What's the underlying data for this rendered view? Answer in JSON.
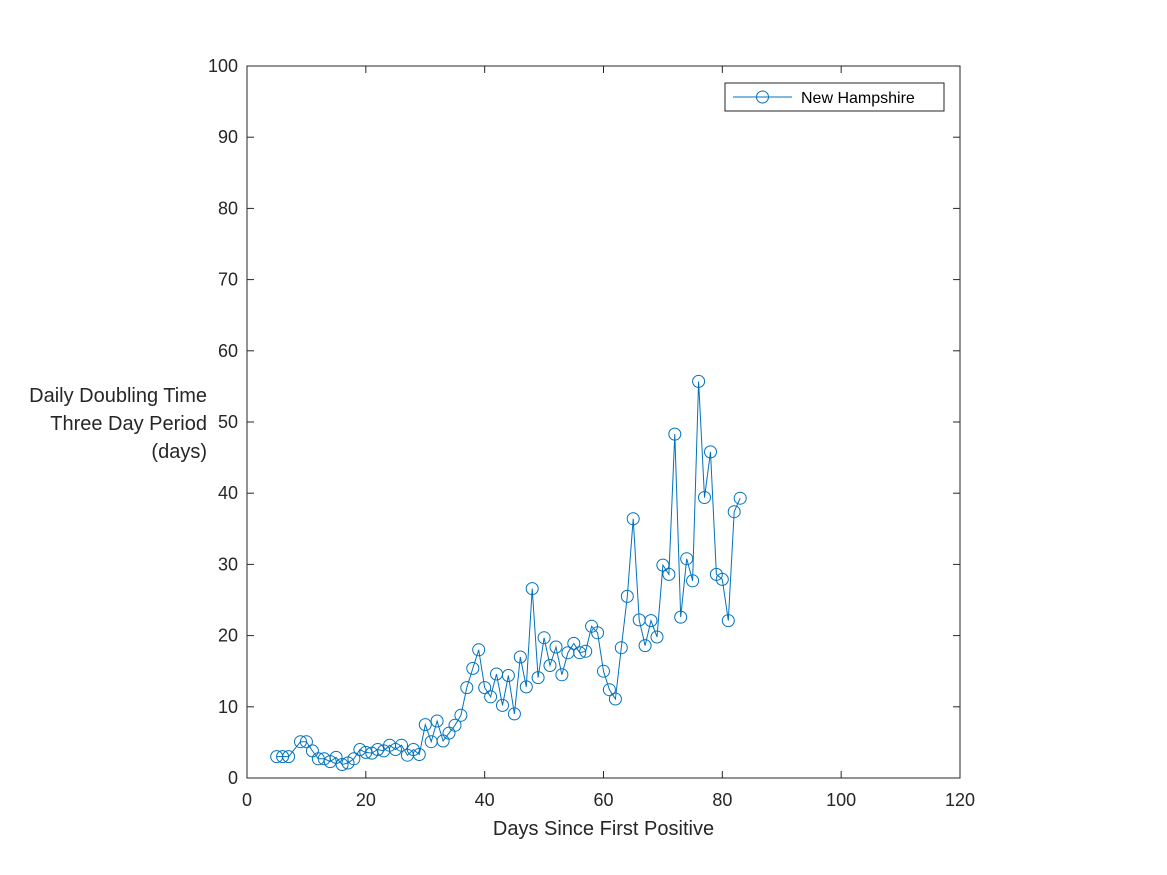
{
  "chart_data": {
    "type": "line",
    "xlabel": "Days Since First Positive",
    "ylabel_lines": [
      "Daily Doubling Time",
      "Three Day Period",
      "(days)"
    ],
    "xlim": [
      0,
      120
    ],
    "ylim": [
      0,
      100
    ],
    "xticks": [
      0,
      20,
      40,
      60,
      80,
      100,
      120
    ],
    "yticks": [
      0,
      10,
      20,
      30,
      40,
      50,
      60,
      70,
      80,
      90,
      100
    ],
    "grid": false,
    "legend_position": "top-right",
    "colors": {
      "series": "#0072BD",
      "axis": "#262626"
    },
    "series": [
      {
        "name": "New Hampshire",
        "marker": "circle",
        "x": [
          5,
          6,
          7,
          9,
          10,
          11,
          12,
          13,
          14,
          15,
          16,
          17,
          18,
          19,
          20,
          21,
          22,
          23,
          24,
          25,
          26,
          27,
          28,
          29,
          30,
          31,
          32,
          33,
          34,
          35,
          36,
          37,
          38,
          39,
          40,
          41,
          42,
          43,
          44,
          45,
          46,
          47,
          48,
          49,
          50,
          51,
          52,
          53,
          54,
          55,
          56,
          57,
          58,
          59,
          60,
          61,
          62,
          63,
          64,
          65,
          66,
          67,
          68,
          69,
          70,
          71,
          72,
          73,
          74,
          75,
          76,
          77,
          78,
          79,
          80,
          81,
          82,
          83
        ],
        "y": [
          3.0,
          3.0,
          3.0,
          5.1,
          5.1,
          3.8,
          2.7,
          2.7,
          2.3,
          2.9,
          1.9,
          2.1,
          2.7,
          4.0,
          3.6,
          3.5,
          4.0,
          3.8,
          4.6,
          4.0,
          4.6,
          3.2,
          4.0,
          3.3,
          7.5,
          5.1,
          8.0,
          5.2,
          6.3,
          7.4,
          8.8,
          12.7,
          15.4,
          18.0,
          12.7,
          11.4,
          14.6,
          10.2,
          14.4,
          9.0,
          17.0,
          12.8,
          26.6,
          14.1,
          19.7,
          15.8,
          18.4,
          14.5,
          17.6,
          18.9,
          17.6,
          17.8,
          21.3,
          20.4,
          15.0,
          12.4,
          11.1,
          18.3,
          25.5,
          36.4,
          22.2,
          18.6,
          22.1,
          19.8,
          29.9,
          28.6,
          48.3,
          22.6,
          30.8,
          27.7,
          55.7,
          39.4,
          45.8,
          28.6,
          27.9,
          22.1,
          37.4,
          39.3
        ]
      }
    ]
  }
}
